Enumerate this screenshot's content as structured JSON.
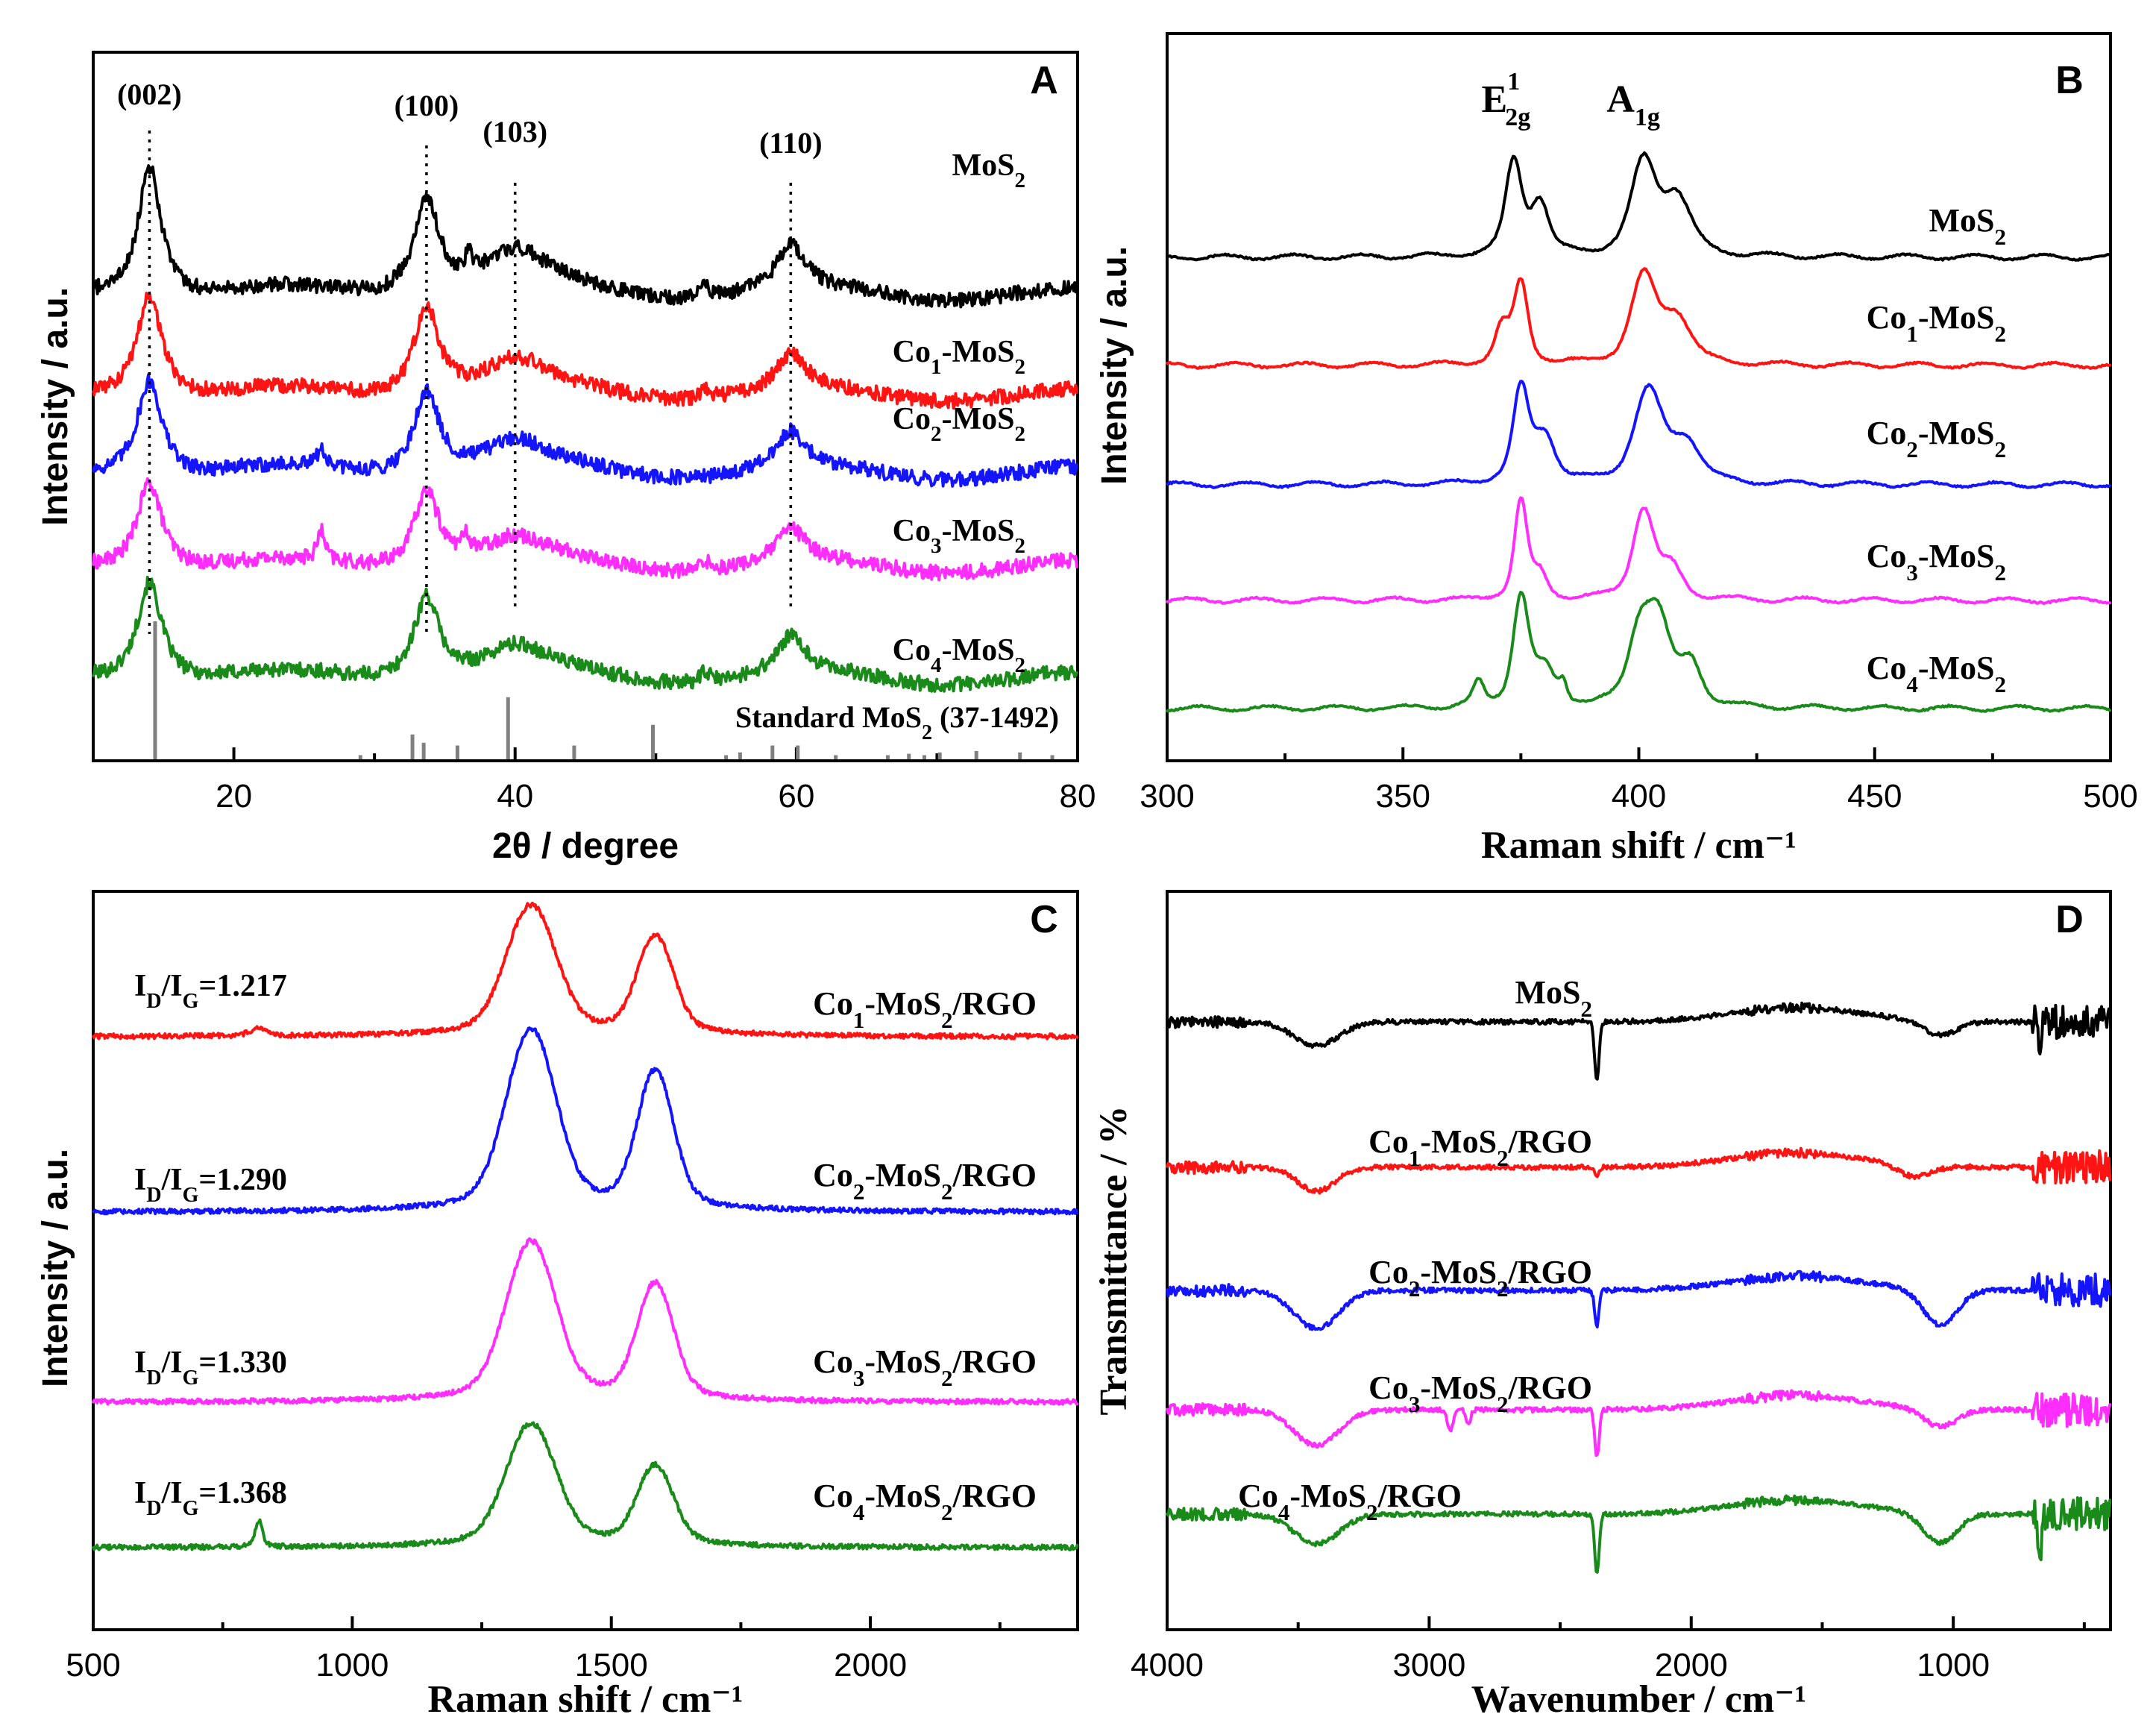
{
  "colors": {
    "green": "#1a8a1a",
    "magenta": "#ff2eff",
    "blue": "#1414ff",
    "red": "#ff1414",
    "black": "#000000",
    "ref_gray": "#808080"
  },
  "chart_data": [
    {
      "id": "A",
      "type": "line",
      "panel_label": "A",
      "xlabel": "2θ / degree",
      "ylabel": "Intensity / a.u.",
      "xlim": [
        10,
        80
      ],
      "xticks": [
        20,
        40,
        60,
        80
      ],
      "y_ticks_shown": false,
      "peak_marks": [
        {
          "label": "(002)",
          "x": 14.0
        },
        {
          "label": "(100)",
          "x": 33.7
        },
        {
          "label": "(103)",
          "x": 40.0
        },
        {
          "label": "(110)",
          "x": 59.6
        }
      ],
      "reference": {
        "label": "Standard MoS2 (37-1492)",
        "sticks": [
          {
            "x": 14.4,
            "h": 1.0
          },
          {
            "x": 29.0,
            "h": 0.03
          },
          {
            "x": 32.7,
            "h": 0.18
          },
          {
            "x": 33.5,
            "h": 0.12
          },
          {
            "x": 35.9,
            "h": 0.1
          },
          {
            "x": 39.5,
            "h": 0.45
          },
          {
            "x": 44.2,
            "h": 0.1
          },
          {
            "x": 49.8,
            "h": 0.25
          },
          {
            "x": 55.0,
            "h": 0.03
          },
          {
            "x": 56.0,
            "h": 0.05
          },
          {
            "x": 58.3,
            "h": 0.1
          },
          {
            "x": 60.1,
            "h": 0.1
          },
          {
            "x": 62.8,
            "h": 0.03
          },
          {
            "x": 66.5,
            "h": 0.03
          },
          {
            "x": 68.0,
            "h": 0.04
          },
          {
            "x": 69.1,
            "h": 0.03
          },
          {
            "x": 70.2,
            "h": 0.05
          },
          {
            "x": 72.8,
            "h": 0.06
          },
          {
            "x": 75.9,
            "h": 0.05
          },
          {
            "x": 78.2,
            "h": 0.03
          }
        ]
      },
      "series": [
        {
          "name": "Co4-MoS2",
          "label_main": "Co",
          "label_sub": "4",
          "label_rest": "-MoS",
          "label_sub2": "2",
          "color_key": "green",
          "offset": 4,
          "peaks": [
            {
              "x": 14.0,
              "h": 0.62,
              "w": 1.1
            },
            {
              "x": 33.7,
              "h": 0.52,
              "w": 1.1
            },
            {
              "x": 40.0,
              "h": 0.17,
              "w": 2.8
            },
            {
              "x": 53.5,
              "h": 0.06,
              "w": 0.4
            },
            {
              "x": 59.6,
              "h": 0.22,
              "w": 1.2
            }
          ]
        },
        {
          "name": "Co3-MoS2",
          "label_main": "Co",
          "label_sub": "3",
          "label_rest": "-MoS",
          "label_sub2": "2",
          "color_key": "magenta",
          "offset": 3,
          "peaks": [
            {
              "x": 14.0,
              "h": 0.55,
              "w": 1.1
            },
            {
              "x": 26.2,
              "h": 0.18,
              "w": 0.3
            },
            {
              "x": 33.7,
              "h": 0.48,
              "w": 1.1
            },
            {
              "x": 36.5,
              "h": 0.1,
              "w": 0.4
            },
            {
              "x": 40.0,
              "h": 0.15,
              "w": 2.8
            },
            {
              "x": 53.5,
              "h": 0.06,
              "w": 0.4
            },
            {
              "x": 59.6,
              "h": 0.2,
              "w": 1.2
            }
          ]
        },
        {
          "name": "Co2-MoS2",
          "label_main": "Co",
          "label_sub": "2",
          "label_rest": "-MoS",
          "label_sub2": "2",
          "color_key": "blue",
          "offset": 2,
          "peaks": [
            {
              "x": 14.0,
              "h": 0.6,
              "w": 1.1
            },
            {
              "x": 26.2,
              "h": 0.12,
              "w": 0.3
            },
            {
              "x": 33.7,
              "h": 0.52,
              "w": 1.1
            },
            {
              "x": 40.0,
              "h": 0.17,
              "w": 2.8
            },
            {
              "x": 59.6,
              "h": 0.22,
              "w": 1.2
            }
          ]
        },
        {
          "name": "Co1-MoS2",
          "label_main": "Co",
          "label_sub": "1",
          "label_rest": "-MoS",
          "label_sub2": "2",
          "color_key": "red",
          "offset": 1,
          "peaks": [
            {
              "x": 14.0,
              "h": 0.65,
              "w": 1.1
            },
            {
              "x": 33.7,
              "h": 0.55,
              "w": 1.1
            },
            {
              "x": 40.0,
              "h": 0.19,
              "w": 2.8
            },
            {
              "x": 53.5,
              "h": 0.06,
              "w": 0.4
            },
            {
              "x": 59.6,
              "h": 0.22,
              "w": 1.2
            }
          ]
        },
        {
          "name": "MoS2",
          "label_main": "MoS",
          "label_sub": "2",
          "label_rest": "",
          "label_sub2": "",
          "color_key": "black",
          "offset": 0,
          "peaks": [
            {
              "x": 14.0,
              "h": 0.82,
              "w": 1.0
            },
            {
              "x": 33.7,
              "h": 0.6,
              "w": 1.1
            },
            {
              "x": 36.7,
              "h": 0.12,
              "w": 0.3
            },
            {
              "x": 40.0,
              "h": 0.24,
              "w": 2.8
            },
            {
              "x": 53.5,
              "h": 0.1,
              "w": 0.3
            },
            {
              "x": 59.6,
              "h": 0.27,
              "w": 1.2
            }
          ]
        }
      ]
    },
    {
      "id": "B",
      "type": "line",
      "panel_label": "B",
      "xlabel": "Raman shift / cm⁻¹",
      "ylabel": "Intensity / a.u.",
      "xlim": [
        300,
        500
      ],
      "xticks": [
        300,
        350,
        400,
        450,
        500
      ],
      "y_ticks_shown": false,
      "mode_labels": [
        {
          "label": "E",
          "sup": "1",
          "sub": "2g",
          "x": 375
        },
        {
          "label": "A",
          "sup": "",
          "sub": "1g",
          "x": 402
        }
      ],
      "series": [
        {
          "name": "Co4-MoS2",
          "label_main": "Co",
          "label_sub": "4",
          "label_rest": "-MoS",
          "label_sub2": "2",
          "color_key": "green",
          "offset": 4,
          "peaks": [
            {
              "x": 375,
              "h": 0.95,
              "w": 2.2
            },
            {
              "x": 380,
              "h": 0.3,
              "w": 3
            },
            {
              "x": 384,
              "h": 0.15,
              "w": 1
            },
            {
              "x": 366,
              "h": 0.2,
              "w": 1.5
            },
            {
              "x": 400,
              "h": 0.55,
              "w": 3
            },
            {
              "x": 404,
              "h": 0.75,
              "w": 3.5
            },
            {
              "x": 411,
              "h": 0.35,
              "w": 3
            }
          ]
        },
        {
          "name": "Co3-MoS2",
          "label_main": "Co",
          "label_sub": "3",
          "label_rest": "-MoS",
          "label_sub2": "2",
          "color_key": "magenta",
          "offset": 3,
          "peaks": [
            {
              "x": 375,
              "h": 0.85,
              "w": 1.8
            },
            {
              "x": 379,
              "h": 0.2,
              "w": 2
            },
            {
              "x": 401,
              "h": 0.78,
              "w": 3
            },
            {
              "x": 407,
              "h": 0.25,
              "w": 3
            }
          ]
        },
        {
          "name": "Co2-MoS2",
          "label_main": "Co",
          "label_sub": "2",
          "label_rest": "-MoS",
          "label_sub2": "2",
          "color_key": "blue",
          "offset": 2,
          "peaks": [
            {
              "x": 375,
              "h": 0.8,
              "w": 2.2
            },
            {
              "x": 380,
              "h": 0.4,
              "w": 3
            },
            {
              "x": 402,
              "h": 0.8,
              "w": 4
            },
            {
              "x": 410,
              "h": 0.35,
              "w": 4
            }
          ]
        },
        {
          "name": "Co1-MoS2",
          "label_main": "Co",
          "label_sub": "1",
          "label_rest": "-MoS",
          "label_sub2": "2",
          "color_key": "red",
          "offset": 1,
          "peaks": [
            {
              "x": 375,
              "h": 0.7,
              "w": 2
            },
            {
              "x": 371,
              "h": 0.3,
              "w": 2
            },
            {
              "x": 401,
              "h": 0.75,
              "w": 3.5
            },
            {
              "x": 408,
              "h": 0.4,
              "w": 4
            }
          ]
        },
        {
          "name": "MoS2",
          "label_main": "MoS",
          "label_sub": "2",
          "label_rest": "",
          "label_sub2": "",
          "color_key": "black",
          "offset": 0,
          "peaks": [
            {
              "x": 373.5,
              "h": 0.82,
              "w": 2.3
            },
            {
              "x": 379,
              "h": 0.45,
              "w": 2.5
            },
            {
              "x": 401,
              "h": 0.8,
              "w": 3.5
            },
            {
              "x": 408,
              "h": 0.5,
              "w": 4
            }
          ]
        }
      ]
    },
    {
      "id": "C",
      "type": "line",
      "panel_label": "C",
      "xlabel": "Raman shift / cm⁻¹",
      "ylabel": "Intensity / a.u.",
      "xlim": [
        500,
        2400
      ],
      "xticks": [
        500,
        1000,
        1500,
        2000
      ],
      "y_ticks_shown": false,
      "series": [
        {
          "name": "Co4-MoS2/RGO",
          "label_main": "Co",
          "label_sub": "4",
          "label_rest": "-MoS",
          "label_sub2": "2",
          "label_tail": "/RGO",
          "color_key": "green",
          "offset": 3,
          "ratio_text": "=1.368",
          "peaks": [
            {
              "x": 1345,
              "h": 0.85,
              "w": 55
            },
            {
              "x": 1585,
              "h": 0.55,
              "w": 40
            },
            {
              "x": 820,
              "h": 0.18,
              "w": 8
            }
          ]
        },
        {
          "name": "Co3-MoS2/RGO",
          "label_main": "Co",
          "label_sub": "3",
          "label_rest": "-MoS",
          "label_sub2": "2",
          "label_tail": "/RGO",
          "color_key": "magenta",
          "offset": 2,
          "ratio_text": "=1.330",
          "peaks": [
            {
              "x": 1345,
              "h": 1.1,
              "w": 55
            },
            {
              "x": 1585,
              "h": 0.8,
              "w": 40
            }
          ]
        },
        {
          "name": "Co2-MoS2/RGO",
          "label_main": "Co",
          "label_sub": "2",
          "label_rest": "-MoS",
          "label_sub2": "2",
          "label_tail": "/RGO",
          "color_key": "blue",
          "offset": 1,
          "ratio_text": "=1.290",
          "peaks": [
            {
              "x": 1345,
              "h": 1.25,
              "w": 55
            },
            {
              "x": 1585,
              "h": 0.95,
              "w": 40
            }
          ]
        },
        {
          "name": "Co1-MoS2/RGO",
          "label_main": "Co",
          "label_sub": "1",
          "label_rest": "-MoS",
          "label_sub2": "2",
          "label_tail": "/RGO",
          "color_key": "red",
          "offset": 0,
          "ratio_text": "=1.217",
          "peaks": [
            {
              "x": 1345,
              "h": 0.9,
              "w": 55
            },
            {
              "x": 1585,
              "h": 0.68,
              "w": 40
            },
            {
              "x": 820,
              "h": 0.05,
              "w": 20
            }
          ]
        }
      ]
    },
    {
      "id": "D",
      "type": "line",
      "panel_label": "D",
      "xlabel": "Wavenumber / cm⁻¹",
      "ylabel": "Transmittance / %",
      "xlim": [
        4000,
        400
      ],
      "xticks": [
        4000,
        3000,
        2000,
        1000
      ],
      "y_ticks_shown": false,
      "series": [
        {
          "name": "Co4-MoS2/RGO",
          "label_main": "Co",
          "label_sub": "4",
          "label_rest": "-MoS",
          "label_sub2": "2",
          "label_tail": "/RGO",
          "color_key": "green",
          "offset": 4,
          "dips": [
            {
              "x": 3430,
              "h": 0.25,
              "w": 120
            },
            {
              "x": 2360,
              "h": 0.5,
              "w": 12
            },
            {
              "x": 1050,
              "h": 0.25,
              "w": 90
            },
            {
              "x": 670,
              "h": 0.35,
              "w": 8
            }
          ]
        },
        {
          "name": "Co3-MoS2/RGO",
          "label_main": "Co",
          "label_sub": "3",
          "label_rest": "-MoS",
          "label_sub2": "2",
          "label_tail": "/RGO",
          "color_key": "magenta",
          "offset": 3,
          "dips": [
            {
              "x": 3430,
              "h": 0.3,
              "w": 120
            },
            {
              "x": 2920,
              "h": 0.18,
              "w": 15
            },
            {
              "x": 2850,
              "h": 0.12,
              "w": 12
            },
            {
              "x": 2360,
              "h": 0.4,
              "w": 12
            },
            {
              "x": 1050,
              "h": 0.15,
              "w": 90
            }
          ]
        },
        {
          "name": "Co2-MoS2/RGO",
          "label_main": "Co",
          "label_sub": "2",
          "label_rest": "-MoS",
          "label_sub2": "2",
          "label_tail": "/RGO",
          "color_key": "blue",
          "offset": 2,
          "dips": [
            {
              "x": 3430,
              "h": 0.32,
              "w": 120
            },
            {
              "x": 2360,
              "h": 0.3,
              "w": 12
            },
            {
              "x": 1050,
              "h": 0.3,
              "w": 90
            }
          ]
        },
        {
          "name": "Co1-MoS2/RGO",
          "label_main": "Co",
          "label_sub": "1",
          "label_rest": "-MoS",
          "label_sub2": "2",
          "label_tail": "/RGO",
          "color_key": "red",
          "offset": 1,
          "dips": [
            {
              "x": 3430,
              "h": 0.2,
              "w": 100
            },
            {
              "x": 2360,
              "h": 0.08,
              "w": 12
            },
            {
              "x": 1150,
              "h": 0.1,
              "w": 90
            }
          ]
        },
        {
          "name": "MoS2",
          "label_main": "MoS",
          "label_sub": "2",
          "label_rest": "",
          "label_sub2": "",
          "label_tail": "",
          "color_key": "black",
          "offset": 0,
          "dips": [
            {
              "x": 3430,
              "h": 0.2,
              "w": 120
            },
            {
              "x": 2360,
              "h": 0.5,
              "w": 12
            },
            {
              "x": 1050,
              "h": 0.12,
              "w": 90
            },
            {
              "x": 670,
              "h": 0.3,
              "w": 8
            }
          ]
        }
      ]
    }
  ]
}
